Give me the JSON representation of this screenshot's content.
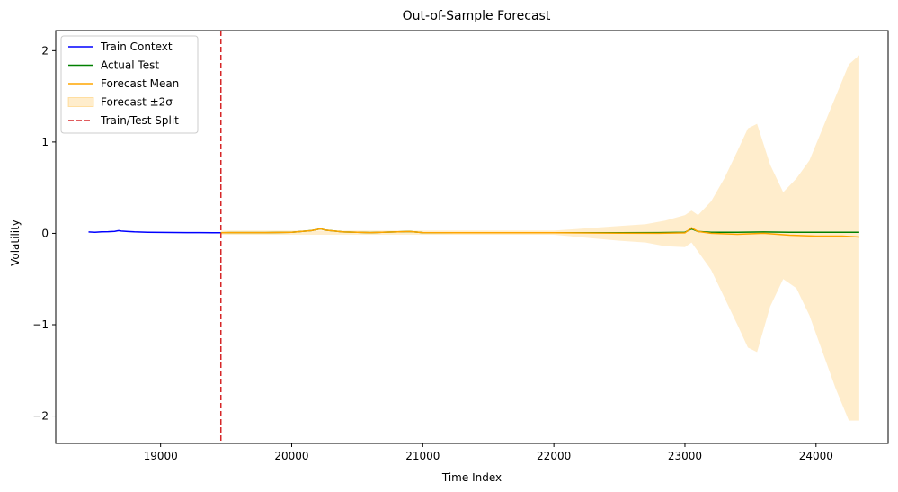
{
  "chart_data": {
    "type": "line",
    "title": "Out-of-Sample Forecast",
    "xlabel": "Time Index",
    "ylabel": "Volatility",
    "xlim": [
      18200,
      24550
    ],
    "ylim": [
      -2.3,
      2.22
    ],
    "xticks": [
      19000,
      20000,
      21000,
      22000,
      23000,
      24000
    ],
    "xtick_labels": [
      "19000",
      "20000",
      "21000",
      "22000",
      "23000",
      "24000"
    ],
    "yticks": [
      -2,
      -1,
      0,
      1,
      2
    ],
    "ytick_labels": [
      "−2",
      "−1",
      "0",
      "1",
      "2"
    ],
    "grid": false,
    "legend_position": "top-left",
    "split": {
      "x": 19460,
      "label": "Train/Test Split",
      "color": "#d62728"
    },
    "series": [
      {
        "name": "Train Context",
        "color": "#0000ff",
        "x": [
          18450,
          18500,
          18550,
          18600,
          18650,
          18680,
          18700,
          18750,
          18800,
          18900,
          19000,
          19100,
          19200,
          19300,
          19400,
          19460
        ],
        "y": [
          0.015,
          0.012,
          0.016,
          0.018,
          0.022,
          0.03,
          0.025,
          0.02,
          0.016,
          0.012,
          0.01,
          0.009,
          0.008,
          0.008,
          0.007,
          0.007
        ]
      },
      {
        "name": "Actual Test",
        "color": "#008000",
        "x": [
          19460,
          19800,
          20000,
          20150,
          20220,
          20260,
          20400,
          20600,
          20900,
          21000,
          21500,
          22000,
          22500,
          22800,
          23000,
          23050,
          23100,
          23200,
          23400,
          23600,
          23800,
          24000,
          24200,
          24330
        ],
        "y": [
          0.007,
          0.008,
          0.012,
          0.03,
          0.05,
          0.035,
          0.015,
          0.008,
          0.02,
          0.008,
          0.006,
          0.006,
          0.006,
          0.008,
          0.012,
          0.05,
          0.02,
          0.012,
          0.012,
          0.015,
          0.012,
          0.012,
          0.012,
          0.012
        ]
      },
      {
        "name": "Forecast Mean",
        "color": "#ffa500",
        "x": [
          19460,
          19800,
          20000,
          20150,
          20220,
          20260,
          20400,
          20600,
          20900,
          21000,
          21500,
          22000,
          22500,
          22800,
          23000,
          23050,
          23100,
          23200,
          23400,
          23600,
          23800,
          24000,
          24200,
          24330
        ],
        "y": [
          0.007,
          0.008,
          0.012,
          0.03,
          0.05,
          0.035,
          0.015,
          0.008,
          0.02,
          0.008,
          0.006,
          0.006,
          0.002,
          0.0,
          0.005,
          0.06,
          0.02,
          0.0,
          -0.01,
          0.0,
          -0.02,
          -0.03,
          -0.03,
          -0.04
        ]
      }
    ],
    "band": {
      "name": "Forecast ±2σ",
      "color": "#ffa500",
      "opacity": 0.2,
      "x": [
        19460,
        22000,
        22500,
        22700,
        22850,
        23000,
        23050,
        23100,
        23200,
        23300,
        23400,
        23480,
        23550,
        23650,
        23750,
        23850,
        23950,
        24050,
        24150,
        24250,
        24330
      ],
      "upper": [
        0.03,
        0.03,
        0.08,
        0.1,
        0.14,
        0.2,
        0.25,
        0.2,
        0.35,
        0.6,
        0.9,
        1.15,
        1.2,
        0.75,
        0.45,
        0.6,
        0.8,
        1.15,
        1.5,
        1.85,
        1.95
      ],
      "lower": [
        -0.015,
        -0.015,
        -0.08,
        -0.1,
        -0.14,
        -0.15,
        -0.1,
        -0.2,
        -0.4,
        -0.7,
        -1.0,
        -1.25,
        -1.3,
        -0.8,
        -0.5,
        -0.6,
        -0.9,
        -1.3,
        -1.7,
        -2.05,
        -2.05
      ]
    }
  }
}
